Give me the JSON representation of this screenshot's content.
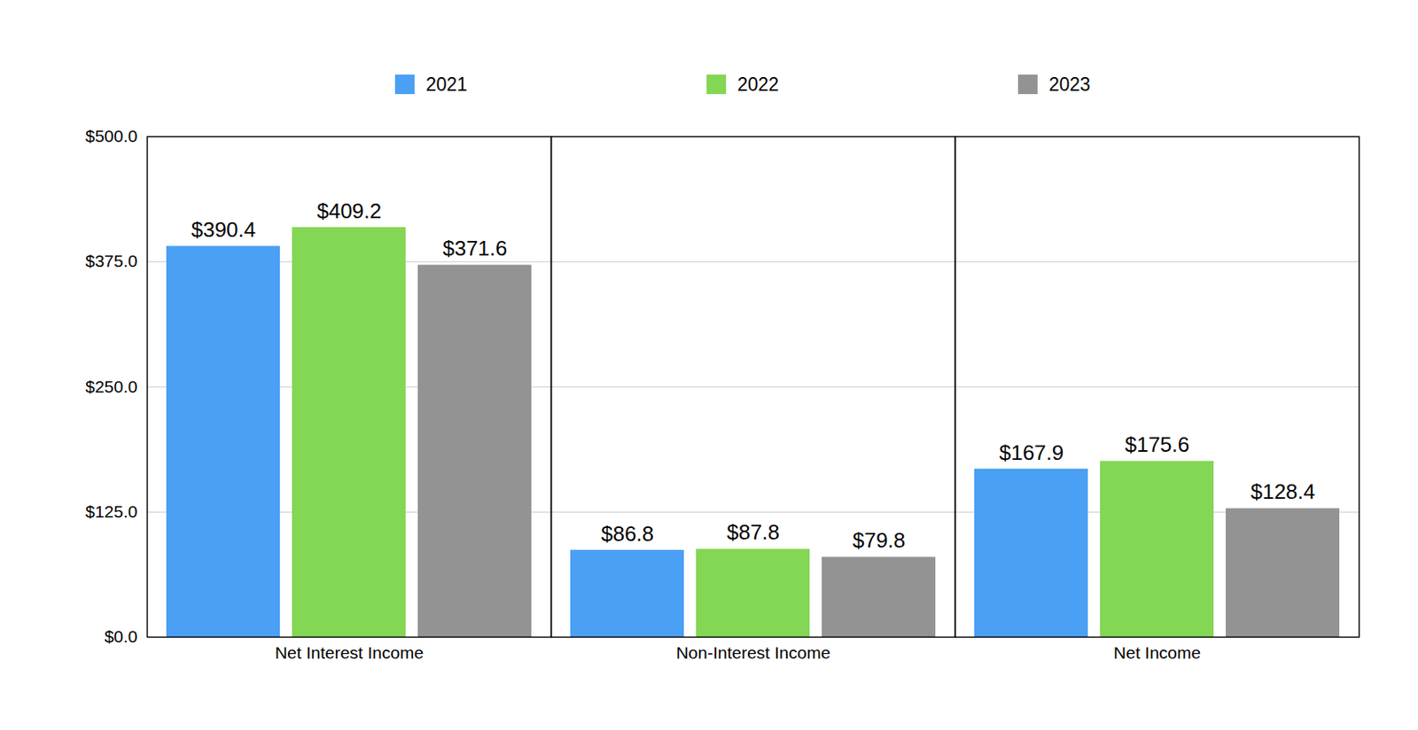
{
  "chart_data": {
    "type": "bar",
    "categories": [
      "Net Interest Income",
      "Non-Interest Income",
      "Net Income"
    ],
    "series": [
      {
        "name": "2021",
        "color": "#4aa0f5",
        "values": [
          390.4,
          86.8,
          167.9
        ],
        "value_labels": [
          "$390.4",
          "$86.8",
          "$167.9"
        ]
      },
      {
        "name": "2022",
        "color": "#84d655",
        "values": [
          409.2,
          87.8,
          175.6
        ],
        "value_labels": [
          "$409.2",
          "$87.8",
          "$175.6"
        ]
      },
      {
        "name": "2023",
        "color": "#939393",
        "values": [
          371.6,
          79.8,
          128.4
        ],
        "value_labels": [
          "$371.6",
          "$79.8",
          "$128.4"
        ]
      }
    ],
    "ylim": [
      0,
      500
    ],
    "yticks": [
      {
        "value": 0,
        "label": "$0.0"
      },
      {
        "value": 125,
        "label": "$125.0"
      },
      {
        "value": 250,
        "label": "$250.0"
      },
      {
        "value": 375,
        "label": "$375.0"
      },
      {
        "value": 500,
        "label": "$500.0"
      }
    ],
    "grid": true,
    "legend": "top",
    "data_labels": true
  }
}
